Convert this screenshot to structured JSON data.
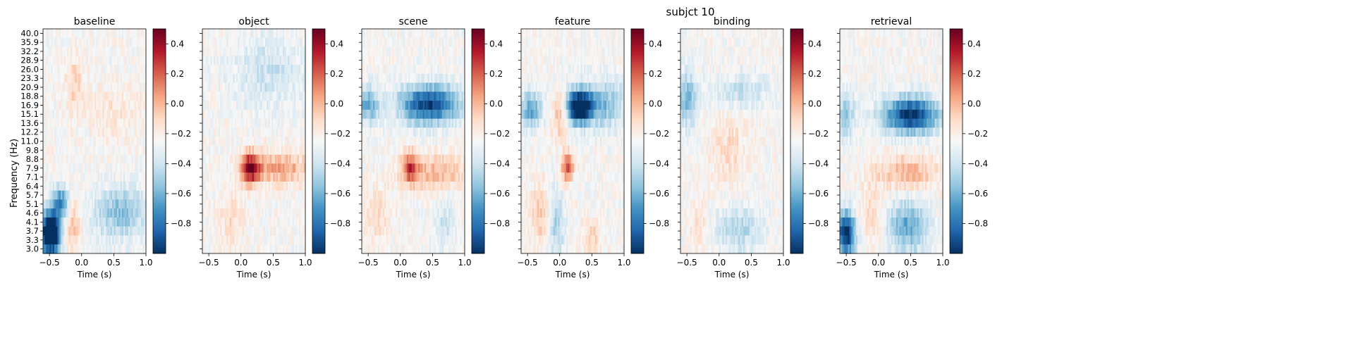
{
  "figure": {
    "suptitle": "subjct 10"
  },
  "chart_data": {
    "type": "heatmap",
    "xlabel": "Time (s)",
    "ylabel": "Frequency (Hz)",
    "x_ticks": [
      -0.5,
      0.0,
      0.5,
      1.0
    ],
    "x_tick_labels": [
      "−0.5",
      "0.0",
      "0.5",
      "1.0"
    ],
    "xlim": [
      -0.6,
      1.0
    ],
    "frequencies": [
      40.0,
      35.9,
      32.2,
      28.9,
      26.0,
      23.3,
      20.9,
      18.8,
      16.9,
      15.1,
      13.6,
      12.2,
      11.0,
      9.8,
      8.8,
      7.9,
      7.1,
      6.4,
      5.7,
      5.1,
      4.6,
      4.1,
      3.7,
      3.3,
      3.0
    ],
    "frequency_labels": [
      "40.0",
      "35.9",
      "32.2",
      "28.9",
      "26.0",
      "23.3",
      "20.9",
      "18.8",
      "16.9",
      "15.1",
      "13.6",
      "12.2",
      "11.0",
      "9.8",
      "8.8",
      "7.9",
      "7.1",
      "6.4",
      "5.7",
      "5.1",
      "4.6",
      "4.1",
      "3.7",
      "3.3",
      "3.0"
    ],
    "colorbar": {
      "colormap": "RdBu_r",
      "vmin": -1.0,
      "vmax": 0.5,
      "ticks": [
        0.4,
        0.2,
        0.0,
        -0.2,
        -0.4,
        -0.6,
        -0.8
      ],
      "tick_labels": [
        "0.4",
        "0.2",
        "0.0",
        "−0.2",
        "−0.4",
        "−0.6",
        "−0.8"
      ]
    },
    "panels": [
      {
        "title": "baseline",
        "blobs": [
          {
            "t": -0.48,
            "f": 3.6,
            "st": 0.11,
            "sf": 0.18,
            "amp": -1.25
          },
          {
            "t": -0.32,
            "f": 5.2,
            "st": 0.09,
            "sf": 0.14,
            "amp": -0.55
          },
          {
            "t": 0.6,
            "f": 4.6,
            "st": 0.3,
            "sf": 0.22,
            "amp": -0.35
          },
          {
            "t": -0.15,
            "f": 4.0,
            "st": 0.1,
            "sf": 0.25,
            "amp": 0.25
          },
          {
            "t": -0.1,
            "f": 22.0,
            "st": 0.1,
            "sf": 0.25,
            "amp": 0.2
          },
          {
            "t": 0.5,
            "f": 15.5,
            "st": 0.3,
            "sf": 0.2,
            "amp": 0.12
          }
        ]
      },
      {
        "title": "object",
        "blobs": [
          {
            "t": 0.15,
            "f": 7.9,
            "st": 0.1,
            "sf": 0.13,
            "amp": 0.75
          },
          {
            "t": 0.6,
            "f": 7.9,
            "st": 0.35,
            "sf": 0.13,
            "amp": 0.35
          },
          {
            "t": -0.15,
            "f": 4.2,
            "st": 0.15,
            "sf": 0.25,
            "amp": 0.15
          },
          {
            "t": 0.4,
            "f": 25.0,
            "st": 0.4,
            "sf": 0.3,
            "amp": -0.18
          }
        ]
      },
      {
        "title": "scene",
        "blobs": [
          {
            "t": 0.45,
            "f": 17.0,
            "st": 0.32,
            "sf": 0.16,
            "amp": -0.8
          },
          {
            "t": -0.5,
            "f": 17.0,
            "st": 0.12,
            "sf": 0.15,
            "amp": -0.45
          },
          {
            "t": 0.15,
            "f": 8.0,
            "st": 0.09,
            "sf": 0.13,
            "amp": 0.5
          },
          {
            "t": 0.55,
            "f": 7.5,
            "st": 0.35,
            "sf": 0.14,
            "amp": 0.3
          },
          {
            "t": -0.35,
            "f": 4.5,
            "st": 0.15,
            "sf": 0.25,
            "amp": 0.15
          },
          {
            "t": 0.7,
            "f": 4.0,
            "st": 0.1,
            "sf": 0.2,
            "amp": -0.2
          }
        ]
      },
      {
        "title": "feature",
        "blobs": [
          {
            "t": 0.3,
            "f": 16.5,
            "st": 0.12,
            "sf": 0.12,
            "amp": -1.1
          },
          {
            "t": 0.6,
            "f": 17.0,
            "st": 0.3,
            "sf": 0.2,
            "amp": -0.4
          },
          {
            "t": -0.45,
            "f": 16.0,
            "st": 0.12,
            "sf": 0.15,
            "amp": -0.45
          },
          {
            "t": 0.12,
            "f": 8.0,
            "st": 0.07,
            "sf": 0.12,
            "amp": 0.55
          },
          {
            "t": 0.0,
            "f": 15.0,
            "st": 0.08,
            "sf": 0.2,
            "amp": 0.3
          },
          {
            "t": -0.3,
            "f": 4.5,
            "st": 0.12,
            "sf": 0.25,
            "amp": 0.22
          },
          {
            "t": -0.05,
            "f": 4.0,
            "st": 0.08,
            "sf": 0.3,
            "amp": -0.3
          },
          {
            "t": 0.5,
            "f": 3.5,
            "st": 0.1,
            "sf": 0.15,
            "amp": 0.2
          }
        ]
      },
      {
        "title": "binding",
        "blobs": [
          {
            "t": -0.5,
            "f": 18.0,
            "st": 0.12,
            "sf": 0.22,
            "amp": -0.4
          },
          {
            "t": 0.35,
            "f": 20.0,
            "st": 0.3,
            "sf": 0.15,
            "amp": -0.2
          },
          {
            "t": 0.15,
            "f": 10.0,
            "st": 0.2,
            "sf": 0.3,
            "amp": 0.15
          },
          {
            "t": 0.3,
            "f": 3.8,
            "st": 0.25,
            "sf": 0.2,
            "amp": -0.25
          },
          {
            "t": -0.3,
            "f": 4.0,
            "st": 0.1,
            "sf": 0.25,
            "amp": 0.15
          }
        ]
      },
      {
        "title": "retrieval",
        "blobs": [
          {
            "t": 0.5,
            "f": 15.0,
            "st": 0.3,
            "sf": 0.15,
            "amp": -0.85
          },
          {
            "t": -0.5,
            "f": 3.6,
            "st": 0.1,
            "sf": 0.18,
            "amp": -0.9
          },
          {
            "t": 0.45,
            "f": 3.9,
            "st": 0.22,
            "sf": 0.22,
            "amp": -0.45
          },
          {
            "t": 0.45,
            "f": 7.5,
            "st": 0.35,
            "sf": 0.14,
            "amp": 0.3
          },
          {
            "t": -0.5,
            "f": 15.0,
            "st": 0.1,
            "sf": 0.2,
            "amp": -0.3
          },
          {
            "t": -0.1,
            "f": 4.5,
            "st": 0.12,
            "sf": 0.25,
            "amp": 0.18
          }
        ]
      }
    ]
  }
}
